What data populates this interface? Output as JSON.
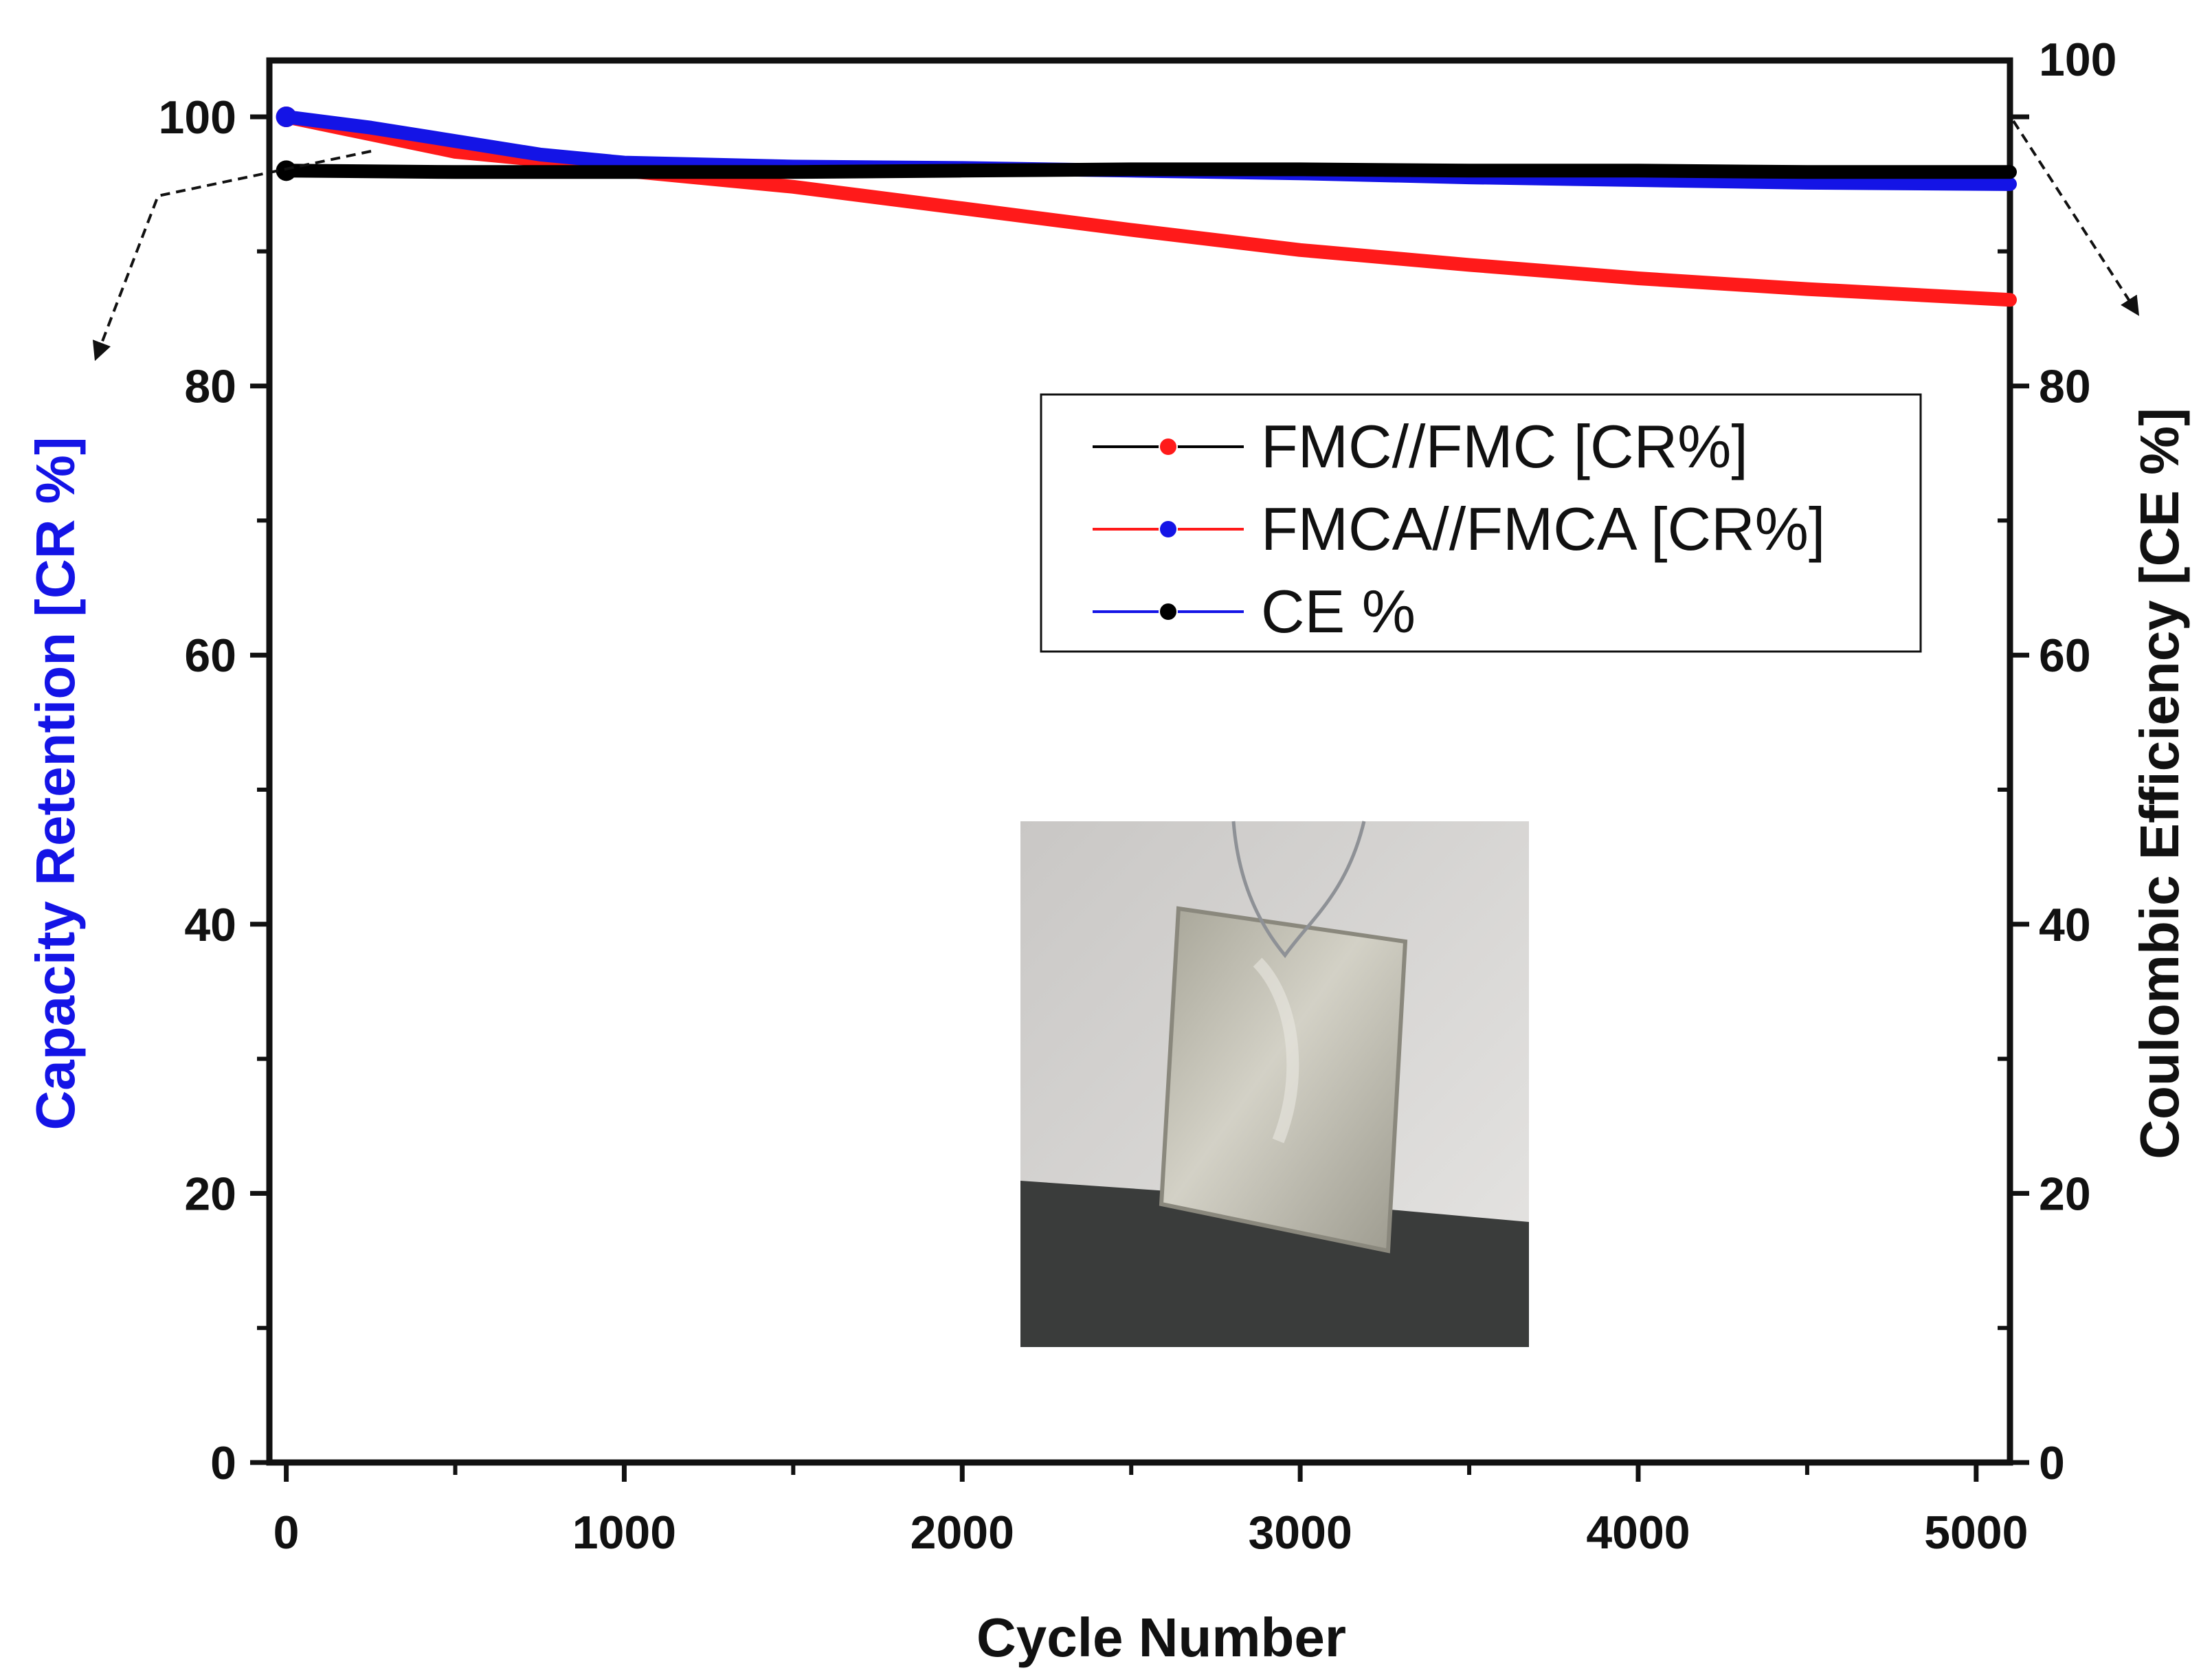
{
  "chart_data": {
    "type": "line",
    "xlabel": "Cycle Number",
    "ylabel_left": "Capacity Retention [CR %]",
    "ylabel_right": "Coulombic Efficiency [CE %]",
    "xlim": [
      -50,
      5100
    ],
    "ylim_left": [
      0,
      100
    ],
    "ylim_right": [
      0,
      100
    ],
    "x_ticks": [
      0,
      1000,
      2000,
      3000,
      4000,
      5000
    ],
    "y_left_ticks": [
      0,
      20,
      40,
      60,
      80,
      100
    ],
    "y_right_ticks": [
      0,
      20,
      40,
      60,
      80,
      100
    ],
    "series": [
      {
        "name": "FMC//FMC [CR%]",
        "axis": "left",
        "color": "#ff1a1a",
        "x": [
          0,
          250,
          500,
          750,
          1000,
          1500,
          2000,
          2500,
          3000,
          3500,
          4000,
          4500,
          5100
        ],
        "y": [
          100,
          98.7,
          97.4,
          96.8,
          96.0,
          94.8,
          93.2,
          91.6,
          90.1,
          89.0,
          88.0,
          87.2,
          86.4
        ]
      },
      {
        "name": "FMCA//FMCA [CR%]",
        "axis": "left",
        "color": "#1414e6",
        "x": [
          0,
          250,
          500,
          750,
          1000,
          1500,
          2000,
          2500,
          3000,
          3500,
          4000,
          4500,
          5100
        ],
        "y": [
          100,
          99.2,
          98.2,
          97.2,
          96.6,
          96.3,
          96.2,
          96.0,
          95.8,
          95.5,
          95.3,
          95.1,
          95.0
        ]
      },
      {
        "name": "CE %",
        "axis": "right",
        "color": "#000000",
        "x": [
          0,
          500,
          1000,
          1500,
          2000,
          2500,
          3000,
          3500,
          4000,
          4500,
          5100
        ],
        "y": [
          96.0,
          95.9,
          95.9,
          95.9,
          96.0,
          96.1,
          96.1,
          96.0,
          96.0,
          95.9,
          95.9
        ]
      }
    ],
    "legend": {
      "placement": "upper-right",
      "entries": [
        {
          "label": "FMC//FMC [CR%]",
          "line_color": "#000000",
          "marker_color": "#ff1a1a"
        },
        {
          "label": "FMCA//FMCA [CR%]",
          "line_color": "#ff1a1a",
          "marker_color": "#1414e6"
        },
        {
          "label": "CE %",
          "line_color": "#1414e6",
          "marker_color": "#000000"
        }
      ]
    },
    "annotations": [
      {
        "type": "dashed-arrow",
        "from_series": "FMCA//FMCA [CR%]",
        "points_to": "left-axis"
      },
      {
        "type": "dashed-arrow",
        "from_series": "CE %",
        "points_to": "right-axis"
      }
    ],
    "inset": {
      "type": "photo",
      "subject": "pouch cell suspended by a wire"
    }
  },
  "colors": {
    "left_axis_title": "#1414e6",
    "right_axis_title": "#111111",
    "axis_line": "#111111"
  }
}
